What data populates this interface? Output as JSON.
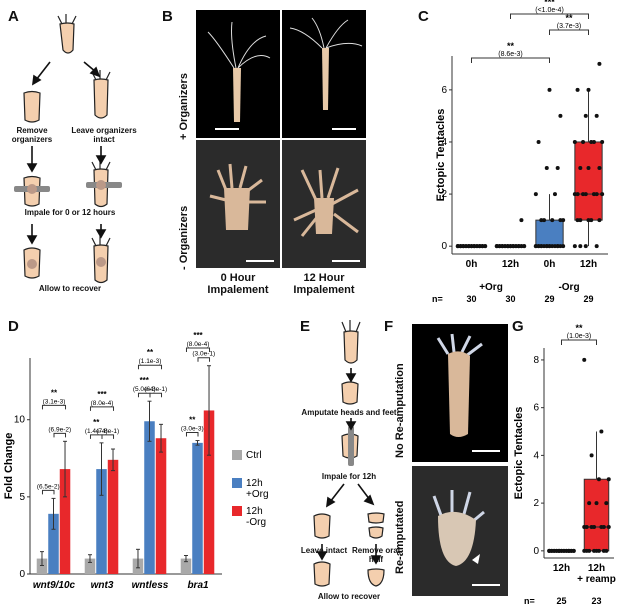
{
  "panels": {
    "a": {
      "label": "A",
      "remove_text": "Remove\norganizers",
      "leave_text": "Leave organizers\nintact",
      "impale_text": "Impale for 0 or 12 hours",
      "recover_text": "Allow to recover"
    },
    "b": {
      "label": "B",
      "row_top": "+ Organizers",
      "row_bottom": "- Organizers",
      "col_left": "0 Hour\nImpalement",
      "col_right": "12 Hour\nImpalement"
    },
    "c": {
      "label": "C"
    },
    "d": {
      "label": "D"
    },
    "e": {
      "label": "E",
      "amputate_text": "Amputate heads and feet",
      "impale_text": "Impale for 12h",
      "leave_text": "Leave intact",
      "remove_text": "Remove oral half",
      "recover_text": "Allow to recover"
    },
    "f": {
      "label": "F",
      "row_top": "No Re-amputation",
      "row_bottom": "Re-amputated"
    },
    "g": {
      "label": "G"
    }
  },
  "colors": {
    "ctrl": "#a9a9a9",
    "org_plus": "#4a7fc1",
    "org_minus": "#e8282b"
  },
  "chart_data": [
    {
      "id": "C",
      "type": "box",
      "ylabel": "Ectopic Tentacles",
      "yticks": [
        0,
        2,
        4,
        6
      ],
      "ylim": [
        -0.3,
        7.3
      ],
      "categories": [
        "0h",
        "12h",
        "0h",
        "12h"
      ],
      "group_labels": [
        "+Org",
        "-Org"
      ],
      "n_prefix": "n=",
      "n": [
        30,
        30,
        29,
        29
      ],
      "boxes": [
        {
          "q1": 0,
          "median": 0,
          "q3": 0,
          "whisker_low": 0,
          "whisker_high": 0,
          "color": "#ffffff"
        },
        {
          "q1": 0,
          "median": 0,
          "q3": 0,
          "whisker_low": 0,
          "whisker_high": 0,
          "color": "#ffffff"
        },
        {
          "q1": 0,
          "median": 0,
          "q3": 1,
          "whisker_low": 0,
          "whisker_high": 2,
          "color": "#4a7fc1"
        },
        {
          "q1": 1,
          "median": 2,
          "q3": 4,
          "whisker_low": 0,
          "whisker_high": 6,
          "color": "#e8282b"
        }
      ],
      "points": [
        [
          0,
          0,
          0,
          0,
          0,
          0,
          0,
          0,
          0,
          0,
          0,
          0,
          0,
          0,
          0,
          0,
          0,
          0,
          0,
          0,
          0,
          0,
          0,
          0,
          0,
          0,
          0,
          0,
          0,
          0
        ],
        [
          0,
          0,
          0,
          0,
          0,
          0,
          0,
          0,
          0,
          0,
          0,
          0,
          0,
          0,
          0,
          0,
          0,
          0,
          0,
          0,
          0,
          0,
          0,
          0,
          0,
          0,
          0,
          1,
          0,
          0
        ],
        [
          0,
          0,
          0,
          0,
          0,
          0,
          0,
          0,
          0,
          0,
          0,
          0,
          0,
          0,
          0,
          0,
          1,
          1,
          1,
          1,
          1,
          2,
          2,
          3,
          3,
          4,
          6,
          5,
          0
        ],
        [
          0,
          0,
          0,
          1,
          1,
          1,
          1,
          1,
          2,
          2,
          2,
          2,
          2,
          2,
          2,
          3,
          3,
          3,
          4,
          4,
          4,
          4,
          4,
          5,
          5,
          6,
          6,
          7,
          0
        ]
      ],
      "comparisons": [
        {
          "from": 0,
          "to": 2,
          "stars": "**",
          "p": "(8.6e-3)"
        },
        {
          "from": 2,
          "to": 3,
          "stars": "**",
          "p": "(3.7e-3)"
        },
        {
          "from": 1,
          "to": 3,
          "stars": "***",
          "p": "(<1.0e-4)"
        }
      ]
    },
    {
      "id": "D",
      "type": "bar",
      "ylabel": "Fold Change",
      "yticks": [
        0,
        5,
        10
      ],
      "ylim": [
        0,
        14
      ],
      "categories": [
        "wnt9/10c",
        "wnt3",
        "wntless",
        "bra1"
      ],
      "series": [
        {
          "name": "Ctrl",
          "color": "#a9a9a9",
          "values": [
            1,
            1,
            1,
            1
          ],
          "errors": [
            0.45,
            0.25,
            0.6,
            0.2
          ]
        },
        {
          "name": "12h\n+Org",
          "color": "#4a7fc1",
          "values": [
            3.9,
            6.8,
            9.9,
            8.5
          ],
          "errors": [
            1.0,
            1.7,
            1.3,
            0.15
          ]
        },
        {
          "name": "12h\n-Org",
          "color": "#e8282b",
          "values": [
            6.8,
            7.4,
            8.8,
            10.6
          ],
          "errors": [
            1.8,
            0.7,
            0.9,
            2.9
          ]
        }
      ],
      "comparisons": [
        {
          "cat": 0,
          "pair": "ctrl-plus",
          "stars": "",
          "p": "(6.5e-2)"
        },
        {
          "cat": 0,
          "pair": "plus-minus",
          "stars": "",
          "p": "(6.9e-2)"
        },
        {
          "cat": 0,
          "pair": "ctrl-minus",
          "stars": "**",
          "p": "(3.1e-3)"
        },
        {
          "cat": 1,
          "pair": "ctrl-plus",
          "stars": "**",
          "p": "(1.4e-4)"
        },
        {
          "cat": 1,
          "pair": "plus-minus",
          "stars": "",
          "p": "(7.8e-1)"
        },
        {
          "cat": 1,
          "pair": "ctrl-minus",
          "stars": "***",
          "p": "(8.0e-4)"
        },
        {
          "cat": 2,
          "pair": "ctrl-plus",
          "stars": "***",
          "p": "(5.0e-4)"
        },
        {
          "cat": 2,
          "pair": "plus-minus",
          "stars": "",
          "p": "(6.3e-1)"
        },
        {
          "cat": 2,
          "pair": "ctrl-minus",
          "stars": "**",
          "p": "(1.1e-3)"
        },
        {
          "cat": 3,
          "pair": "ctrl-plus",
          "stars": "**",
          "p": "(3.0e-3)"
        },
        {
          "cat": 3,
          "pair": "plus-minus",
          "stars": "",
          "p": "(3.0e-1)"
        },
        {
          "cat": 3,
          "pair": "ctrl-minus",
          "stars": "***",
          "p": "(8.0e-4)"
        }
      ]
    },
    {
      "id": "G",
      "type": "box",
      "ylabel": "Ectopic Tentacles",
      "yticks": [
        0,
        2,
        4,
        6,
        8
      ],
      "ylim": [
        -0.3,
        8.5
      ],
      "categories": [
        "12h",
        "12h\n+ reamp"
      ],
      "n_prefix": "n=",
      "n": [
        25,
        23
      ],
      "boxes": [
        {
          "q1": 0,
          "median": 0,
          "q3": 0,
          "whisker_low": 0,
          "whisker_high": 0,
          "color": "#ffffff"
        },
        {
          "q1": 0,
          "median": 1,
          "q3": 3,
          "whisker_low": 0,
          "whisker_high": 5,
          "color": "#e8282b"
        }
      ],
      "points": [
        [
          0,
          0,
          0,
          0,
          0,
          0,
          0,
          0,
          0,
          0,
          0,
          0,
          0,
          0,
          0,
          0,
          0,
          0,
          0,
          0,
          0,
          0,
          0,
          0,
          0
        ],
        [
          0,
          0,
          0,
          0,
          0,
          0,
          0,
          0,
          1,
          1,
          1,
          1,
          1,
          1,
          1,
          2,
          2,
          2,
          3,
          3,
          4,
          5,
          8
        ]
      ],
      "comparisons": [
        {
          "from": 0,
          "to": 1,
          "stars": "**",
          "p": "(1.0e-3)"
        }
      ]
    }
  ]
}
